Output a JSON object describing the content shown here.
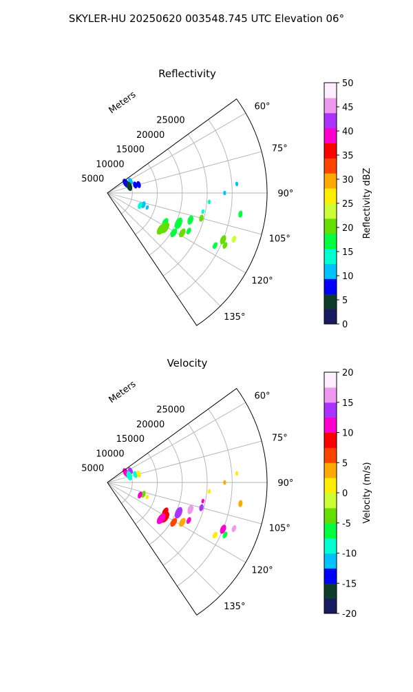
{
  "figure": {
    "title": "SKYLER-HU  20250620  003548.745 UTC Elevation 06°"
  },
  "chart_data": [
    {
      "type": "heatmap",
      "subtype": "polar-sector",
      "title": "Reflectivity",
      "range_label": "Meters",
      "range_ticks": [
        5000,
        10000,
        15000,
        20000,
        25000
      ],
      "range_max": 32000,
      "angle_ticks": [
        "60°",
        "75°",
        "90°",
        "105°",
        "120°",
        "135°"
      ],
      "angle_tick_values": [
        60,
        75,
        90,
        105,
        120,
        135
      ],
      "angle_range": [
        54,
        146
      ],
      "grid": true,
      "colorbar": {
        "label": "Reflectivity dBZ",
        "ticks": [
          0,
          5,
          10,
          15,
          20,
          25,
          30,
          35,
          40,
          45,
          50
        ],
        "range": [
          0,
          50
        ],
        "stops": [
          "#1a1a5e",
          "#0d3d2a",
          "#0000ff",
          "#00c0ff",
          "#00ffd0",
          "#00ff40",
          "#66dd00",
          "#ccff33",
          "#ffee00",
          "#ffaa00",
          "#ff4400",
          "#ff0000",
          "#ff00cc",
          "#aa33ff",
          "#ee99ee",
          "#ffeeff"
        ]
      },
      "echoes": [
        {
          "az": 62,
          "r": 4200,
          "w": 3,
          "v": 8
        },
        {
          "az": 63,
          "r": 5200,
          "w": 2,
          "v": 10
        },
        {
          "az": 73,
          "r": 4600,
          "w": 3,
          "v": 6
        },
        {
          "az": 74,
          "r": 5800,
          "w": 2,
          "v": 7
        },
        {
          "az": 75,
          "r": 6500,
          "w": 2,
          "v": 9
        },
        {
          "az": 86,
          "r": 26000,
          "w": 1,
          "v": 12
        },
        {
          "az": 90,
          "r": 23500,
          "w": 1,
          "v": 12
        },
        {
          "az": 95,
          "r": 20500,
          "w": 1,
          "v": 15
        },
        {
          "az": 101,
          "r": 19500,
          "w": 1,
          "v": 14
        },
        {
          "az": 99,
          "r": 27000,
          "w": 2,
          "v": 17
        },
        {
          "az": 108,
          "r": 7600,
          "w": 2,
          "v": 11
        },
        {
          "az": 111,
          "r": 7000,
          "w": 2,
          "v": 14
        },
        {
          "az": 110,
          "r": 8500,
          "w": 1,
          "v": 12
        },
        {
          "az": 113,
          "r": 15500,
          "w": 4,
          "v": 18
        },
        {
          "az": 108,
          "r": 17500,
          "w": 3,
          "v": 16
        },
        {
          "az": 105,
          "r": 19500,
          "w": 2,
          "v": 19
        },
        {
          "az": 117,
          "r": 13000,
          "w": 3,
          "v": 16
        },
        {
          "az": 121,
          "r": 13500,
          "w": 4,
          "v": 19
        },
        {
          "az": 124,
          "r": 13000,
          "w": 4,
          "v": 20
        },
        {
          "az": 121,
          "r": 15500,
          "w": 3,
          "v": 17
        },
        {
          "az": 118,
          "r": 17000,
          "w": 3,
          "v": 21
        },
        {
          "az": 115,
          "r": 18000,
          "w": 2,
          "v": 18
        },
        {
          "az": 112,
          "r": 25000,
          "w": 3,
          "v": 19
        },
        {
          "az": 110,
          "r": 27000,
          "w": 2,
          "v": 22
        },
        {
          "az": 116,
          "r": 24000,
          "w": 2,
          "v": 18
        },
        {
          "az": 114,
          "r": 25800,
          "w": 2,
          "v": 20
        }
      ]
    },
    {
      "type": "heatmap",
      "subtype": "polar-sector",
      "title": "Velocity",
      "range_label": "Meters",
      "range_ticks": [
        5000,
        10000,
        15000,
        20000,
        25000
      ],
      "range_max": 32000,
      "angle_ticks": [
        "60°",
        "75°",
        "90°",
        "105°",
        "120°",
        "135°"
      ],
      "angle_tick_values": [
        60,
        75,
        90,
        105,
        120,
        135
      ],
      "angle_range": [
        54,
        146
      ],
      "grid": true,
      "colorbar": {
        "label": "Velocity (m/s)",
        "ticks": [
          -20,
          -15,
          -10,
          -5,
          0,
          5,
          10,
          15,
          20
        ],
        "range": [
          -20,
          20
        ],
        "stops": [
          "#1a1a5e",
          "#0d3d2a",
          "#0000ff",
          "#00c0ff",
          "#00ffd0",
          "#00ff40",
          "#66dd00",
          "#ccff33",
          "#ffee00",
          "#ffaa00",
          "#ff4400",
          "#ff0000",
          "#ff00cc",
          "#aa33ff",
          "#ee99ee",
          "#ffeeff"
        ]
      },
      "echoes": [
        {
          "az": 62,
          "r": 4200,
          "w": 3,
          "v": 12
        },
        {
          "az": 63,
          "r": 5200,
          "w": 2,
          "v": 14
        },
        {
          "az": 73,
          "r": 4600,
          "w": 3,
          "v": -8
        },
        {
          "az": 74,
          "r": 5800,
          "w": 2,
          "v": -10
        },
        {
          "az": 75,
          "r": 6500,
          "w": 2,
          "v": 2
        },
        {
          "az": 86,
          "r": 26000,
          "w": 1,
          "v": 1
        },
        {
          "az": 90,
          "r": 23500,
          "w": 1,
          "v": 4
        },
        {
          "az": 95,
          "r": 20500,
          "w": 1,
          "v": 0
        },
        {
          "az": 101,
          "r": 19500,
          "w": 1,
          "v": 10
        },
        {
          "az": 99,
          "r": 27000,
          "w": 2,
          "v": 3
        },
        {
          "az": 108,
          "r": 7600,
          "w": 2,
          "v": -4
        },
        {
          "az": 111,
          "r": 7000,
          "w": 2,
          "v": 12
        },
        {
          "az": 110,
          "r": 8500,
          "w": 1,
          "v": 2
        },
        {
          "az": 113,
          "r": 15500,
          "w": 4,
          "v": 13
        },
        {
          "az": 108,
          "r": 17500,
          "w": 3,
          "v": 16
        },
        {
          "az": 105,
          "r": 19500,
          "w": 2,
          "v": 13
        },
        {
          "az": 117,
          "r": 13000,
          "w": 3,
          "v": 8
        },
        {
          "az": 121,
          "r": 13500,
          "w": 4,
          "v": 9
        },
        {
          "az": 124,
          "r": 13000,
          "w": 4,
          "v": 10
        },
        {
          "az": 121,
          "r": 15500,
          "w": 3,
          "v": 7
        },
        {
          "az": 118,
          "r": 17000,
          "w": 3,
          "v": 4
        },
        {
          "az": 115,
          "r": 18000,
          "w": 2,
          "v": 11
        },
        {
          "az": 112,
          "r": 25000,
          "w": 3,
          "v": 12
        },
        {
          "az": 110,
          "r": 27000,
          "w": 2,
          "v": 15
        },
        {
          "az": 116,
          "r": 24000,
          "w": 2,
          "v": 2
        },
        {
          "az": 114,
          "r": 25800,
          "w": 2,
          "v": -6
        }
      ]
    }
  ]
}
